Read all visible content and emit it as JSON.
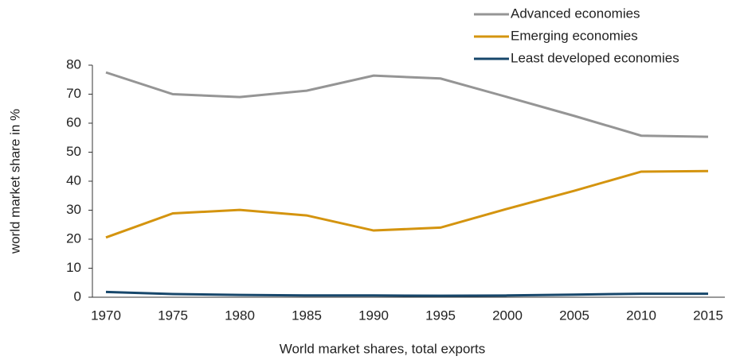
{
  "chart_data": {
    "type": "line",
    "x_label": "World market shares, total exports",
    "y_label": "world market share in %",
    "categories": [
      "1970",
      "1975",
      "1980",
      "1985",
      "1990",
      "1995",
      "2000",
      "2005",
      "2010",
      "2015"
    ],
    "series": [
      {
        "name": "Advanced economies",
        "color": "#959595",
        "values": [
          77.5,
          70,
          69,
          71.2,
          76.4,
          75.4,
          69,
          62.5,
          55.7,
          55.3
        ]
      },
      {
        "name": "Emerging economies",
        "color": "#d4940f",
        "values": [
          20.6,
          28.9,
          30.1,
          28.2,
          23,
          24,
          30.5,
          36.7,
          43.3,
          43.5
        ]
      },
      {
        "name": "Least developed economies",
        "color": "#17476b",
        "values": [
          1.8,
          1.1,
          0.8,
          0.6,
          0.6,
          0.5,
          0.6,
          0.9,
          1.2,
          1.2
        ]
      }
    ],
    "ylim": [
      0,
      80
    ],
    "yticks": [
      0,
      10,
      20,
      30,
      40,
      50,
      60,
      70,
      80
    ],
    "legend": "top-right"
  }
}
